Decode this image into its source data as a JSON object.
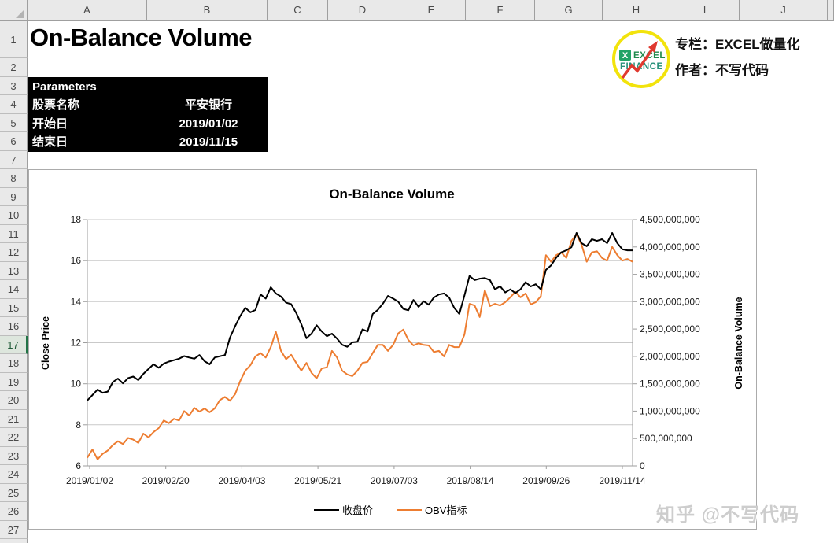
{
  "excel": {
    "columns": [
      "A",
      "B",
      "C",
      "D",
      "E",
      "F",
      "G",
      "H",
      "I",
      "J"
    ],
    "row_count": 28,
    "selected_row": 17
  },
  "sheet": {
    "title": "On-Balance Volume"
  },
  "brand": {
    "logo_word_top": "EXCEL",
    "logo_word_bottom": "FINANCE",
    "column_line": "专栏：EXCEL做量化",
    "author_line": "作者：不写代码"
  },
  "parameters": {
    "heading": "Parameters",
    "rows": [
      {
        "label": "股票名称",
        "value": "平安银行"
      },
      {
        "label": "开始日",
        "value": "2019/01/02"
      },
      {
        "label": "结束日",
        "value": "2019/11/15"
      }
    ]
  },
  "watermark": "知乎 @不写代码",
  "chart_data": {
    "type": "line",
    "title": "On-Balance Volume",
    "grid": true,
    "legend_position": "bottom",
    "x_tick_labels": [
      "2019/01/02",
      "2019/02/20",
      "2019/04/03",
      "2019/05/21",
      "2019/07/03",
      "2019/08/14",
      "2019/09/26",
      "2019/11/14"
    ],
    "left_axis": {
      "title": "Close Price",
      "min": 6,
      "max": 18,
      "ticks": [
        18,
        16,
        14,
        12,
        10,
        8,
        6
      ]
    },
    "right_axis": {
      "title": "On-Balance Volume",
      "min": 0,
      "max": 4500000000,
      "tick_labels": [
        "4,500,000,000",
        "4,000,000,000",
        "3,500,000,000",
        "3,000,000,000",
        "2,500,000,000",
        "2,000,000,000",
        "1,500,000,000",
        "1,000,000,000",
        "500,000,000",
        "0"
      ]
    },
    "series": [
      {
        "name": "收盘价",
        "axis": "left",
        "color": "#000000",
        "values": [
          9.19,
          9.45,
          9.72,
          9.56,
          9.62,
          10.08,
          10.25,
          10.02,
          10.28,
          10.35,
          10.18,
          10.48,
          10.72,
          10.95,
          10.78,
          10.98,
          11.08,
          11.15,
          11.22,
          11.35,
          11.28,
          11.22,
          11.4,
          11.1,
          10.95,
          11.28,
          11.34,
          11.4,
          12.25,
          12.8,
          13.3,
          13.7,
          13.48,
          13.6,
          14.35,
          14.15,
          14.7,
          14.4,
          14.25,
          13.95,
          13.88,
          13.45,
          12.9,
          12.22,
          12.45,
          12.85,
          12.55,
          12.32,
          12.44,
          12.2,
          11.9,
          11.8,
          12.02,
          12.05,
          12.65,
          12.55,
          13.4,
          13.6,
          13.9,
          14.28,
          14.15,
          14.0,
          13.65,
          13.58,
          14.08,
          13.75,
          14.02,
          13.85,
          14.2,
          14.35,
          14.4,
          14.2,
          13.7,
          13.4,
          14.3,
          15.25,
          15.05,
          15.12,
          15.15,
          15.05,
          14.6,
          14.75,
          14.45,
          14.6,
          14.42,
          14.6,
          14.95,
          14.74,
          14.85,
          14.6,
          15.55,
          15.77,
          16.14,
          16.4,
          16.5,
          16.65,
          17.35,
          16.85,
          16.7,
          17.04,
          16.96,
          17.04,
          16.85,
          17.35,
          16.85,
          16.55,
          16.5,
          16.5
        ]
      },
      {
        "name": "OBV指标",
        "axis": "right",
        "color": "#ED7D31",
        "values_billion": [
          0.15,
          0.3,
          0.12,
          0.22,
          0.28,
          0.38,
          0.45,
          0.4,
          0.51,
          0.48,
          0.42,
          0.59,
          0.52,
          0.62,
          0.69,
          0.83,
          0.78,
          0.86,
          0.83,
          1.0,
          0.92,
          1.06,
          0.99,
          1.05,
          0.98,
          1.05,
          1.2,
          1.26,
          1.19,
          1.31,
          1.55,
          1.74,
          1.84,
          2.0,
          2.06,
          1.98,
          2.17,
          2.45,
          2.1,
          1.95,
          2.03,
          1.88,
          1.74,
          1.88,
          1.7,
          1.6,
          1.78,
          1.8,
          2.1,
          1.98,
          1.74,
          1.67,
          1.64,
          1.74,
          1.88,
          1.9,
          2.06,
          2.21,
          2.21,
          2.1,
          2.21,
          2.42,
          2.49,
          2.3,
          2.2,
          2.24,
          2.21,
          2.2,
          2.08,
          2.1,
          2.0,
          2.21,
          2.17,
          2.17,
          2.4,
          2.96,
          2.93,
          2.72,
          3.21,
          2.92,
          2.96,
          2.93,
          2.99,
          3.08,
          3.18,
          3.08,
          3.15,
          2.95,
          2.99,
          3.1,
          3.85,
          3.73,
          3.85,
          3.9,
          3.8,
          4.11,
          4.23,
          4.04,
          3.73,
          3.9,
          3.92,
          3.8,
          3.75,
          4.0,
          3.85,
          3.75,
          3.78,
          3.73
        ]
      }
    ]
  }
}
